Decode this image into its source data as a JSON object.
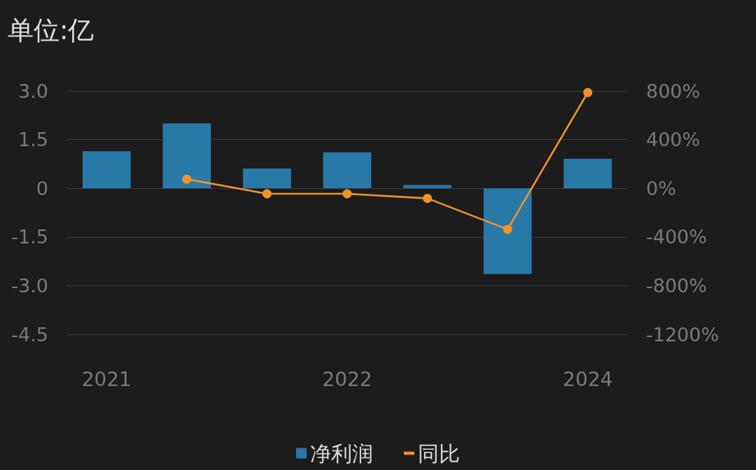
{
  "chart_data": {
    "type": "bar",
    "title": "单位:亿",
    "categories": [
      "2021",
      null,
      null,
      "2022",
      null,
      null,
      "2024"
    ],
    "series": [
      {
        "name": "净利润",
        "color": "#2878a8",
        "values": [
          1.14,
          2.0,
          0.61,
          1.11,
          0.1,
          -2.64,
          0.91
        ]
      },
      {
        "name": "同比",
        "type": "line",
        "axis": "y2",
        "color": "#f39229",
        "values": [
          null,
          75,
          -45,
          -45,
          -83,
          -337,
          787
        ]
      }
    ],
    "ylim": [
      -4.5,
      3.0
    ],
    "yticks": [
      {
        "value": -4.5,
        "label": "-4.5"
      },
      {
        "value": -3,
        "label": "-3.0"
      },
      -1.5,
      0,
      1.5,
      {
        "value": 3,
        "label": "3.0"
      }
    ],
    "y2lim": [
      -1200,
      800
    ],
    "y2ticks": [
      {
        "value": -1200,
        "label": "-1200%"
      },
      {
        "value": -800,
        "label": "-800%"
      },
      {
        "value": -400,
        "label": "-400%"
      },
      {
        "value": 0,
        "label": "0%"
      },
      {
        "value": 400,
        "label": "400%"
      },
      {
        "value": 800,
        "label": "800%"
      }
    ],
    "grid": "y",
    "legend": "bottom",
    "marker": "circle",
    "line_style": "solid"
  }
}
